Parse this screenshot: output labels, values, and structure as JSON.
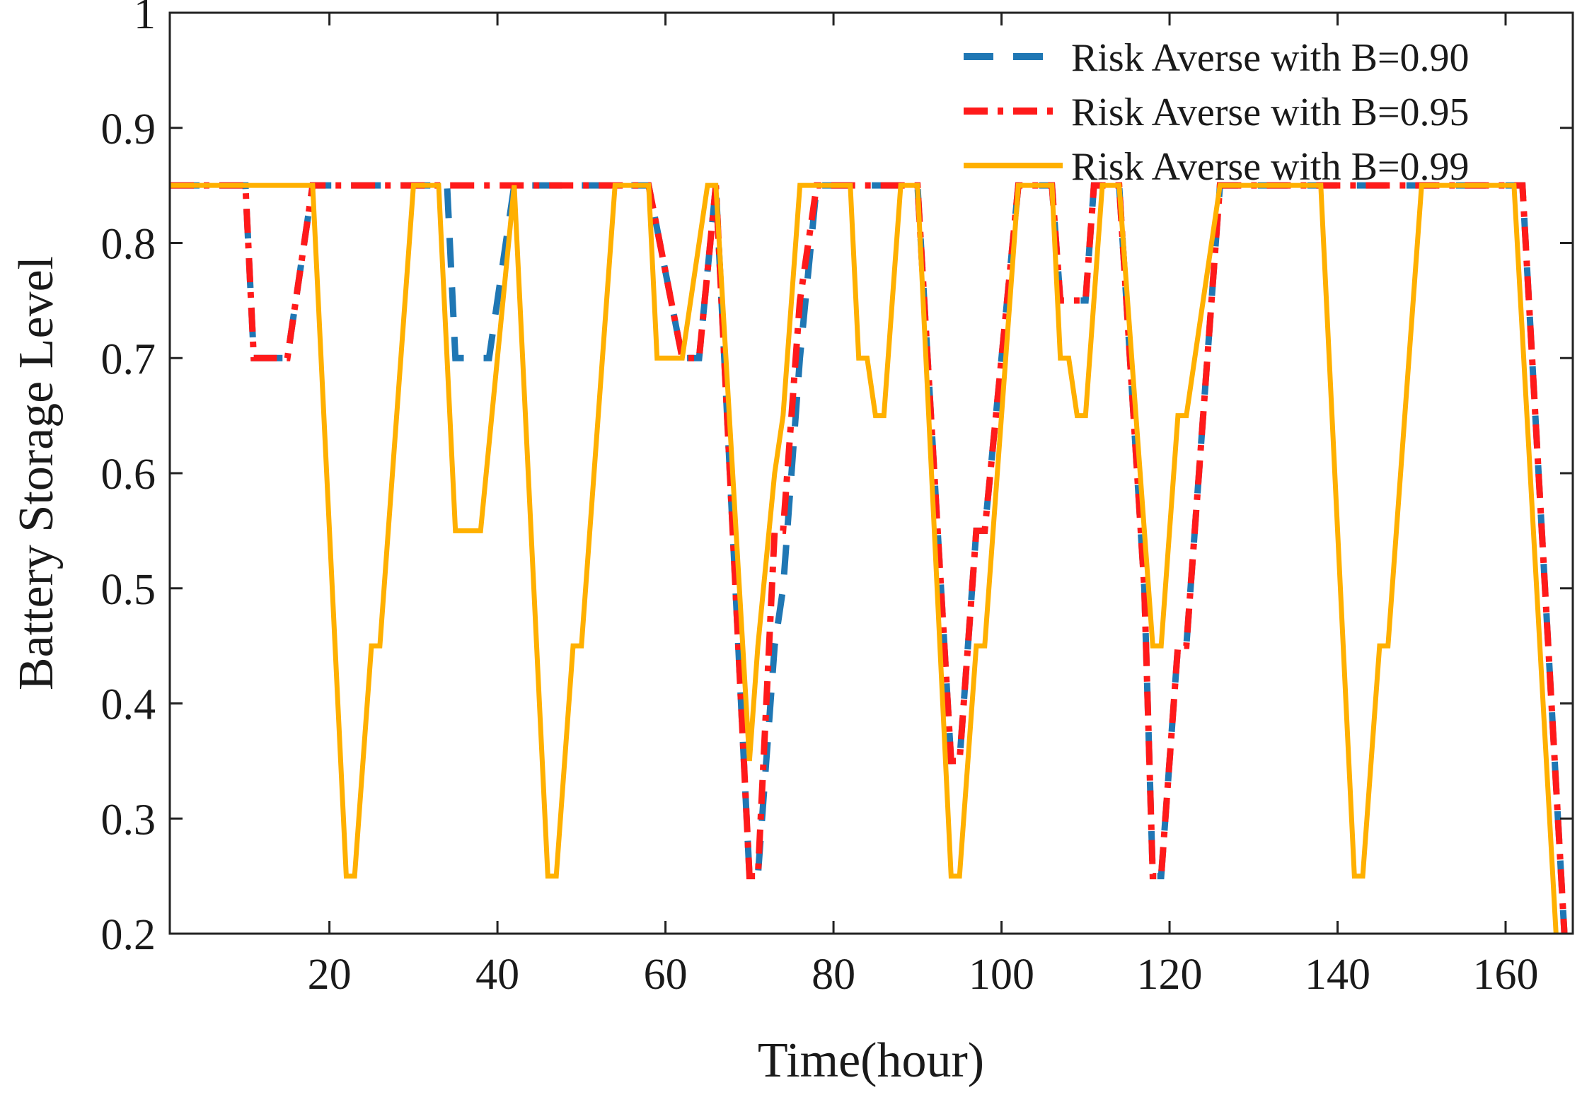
{
  "chart_data": {
    "type": "line",
    "title": "",
    "xlabel": "Time(hour)",
    "ylabel": "Battery Storage Level",
    "xlim": [
      1,
      168
    ],
    "ylim": [
      0.2,
      1.0
    ],
    "xticks": [
      20,
      40,
      60,
      80,
      100,
      120,
      140,
      160
    ],
    "xtick_labels": [
      "20",
      "40",
      "60",
      "80",
      "100",
      "120",
      "140",
      "160"
    ],
    "yticks": [
      0.2,
      0.3,
      0.4,
      0.5,
      0.6,
      0.7,
      0.8,
      0.9,
      1.0
    ],
    "ytick_labels": [
      "0.2",
      "0.3",
      "0.4",
      "0.5",
      "0.6",
      "0.7",
      "0.8",
      "0.9",
      "1"
    ],
    "grid": false,
    "legend_position": "top-right",
    "series": [
      {
        "name": "Risk Averse with B=0.90",
        "color": "#1f77b4",
        "dash": "dashed",
        "x": [
          1,
          10,
          11,
          15,
          18,
          33,
          34,
          35,
          36,
          37,
          38,
          39,
          42,
          54,
          58,
          62,
          64,
          66,
          70,
          71,
          73,
          74,
          76,
          78,
          90,
          94,
          95,
          96,
          97,
          98,
          102,
          106,
          107,
          110,
          111,
          113,
          114,
          117,
          118,
          119,
          121,
          122,
          126,
          161,
          162,
          167
        ],
        "y": [
          0.85,
          0.85,
          0.7,
          0.7,
          0.85,
          0.85,
          0.85,
          0.7,
          0.7,
          0.7,
          0.7,
          0.7,
          0.85,
          0.85,
          0.85,
          0.7,
          0.7,
          0.85,
          0.25,
          0.25,
          0.45,
          0.5,
          0.7,
          0.85,
          0.85,
          0.35,
          0.35,
          0.45,
          0.55,
          0.55,
          0.85,
          0.85,
          0.75,
          0.75,
          0.85,
          0.85,
          0.85,
          0.5,
          0.25,
          0.25,
          0.45,
          0.45,
          0.85,
          0.85,
          0.85,
          0.2
        ]
      },
      {
        "name": "Risk Averse with B=0.95",
        "color": "#ff1a1a",
        "dash": "dashdot",
        "x": [
          1,
          10,
          11,
          15,
          18,
          33,
          42,
          54,
          58,
          62,
          64,
          66,
          70,
          71,
          72,
          73,
          74,
          76,
          78,
          90,
          94,
          95,
          96,
          97,
          98,
          102,
          106,
          107,
          110,
          111,
          113,
          114,
          117,
          118,
          119,
          121,
          122,
          126,
          161,
          162,
          167
        ],
        "y": [
          0.85,
          0.85,
          0.7,
          0.7,
          0.85,
          0.85,
          0.85,
          0.85,
          0.85,
          0.7,
          0.7,
          0.85,
          0.25,
          0.25,
          0.4,
          0.55,
          0.55,
          0.75,
          0.85,
          0.85,
          0.35,
          0.35,
          0.45,
          0.55,
          0.55,
          0.85,
          0.85,
          0.75,
          0.75,
          0.85,
          0.85,
          0.85,
          0.5,
          0.25,
          0.25,
          0.45,
          0.45,
          0.85,
          0.85,
          0.85,
          0.2
        ]
      },
      {
        "name": "Risk Averse with B=0.99",
        "color": "#ffb000",
        "dash": "solid",
        "x": [
          1,
          18,
          22,
          23,
          25,
          26,
          30,
          33,
          35,
          38,
          42,
          46,
          47,
          49,
          50,
          54,
          58,
          59,
          62,
          64,
          65,
          66,
          70,
          71,
          73,
          74,
          76,
          82,
          83,
          84,
          85,
          86,
          88,
          90,
          94,
          95,
          97,
          98,
          102,
          106,
          107,
          108,
          109,
          110,
          112,
          114,
          118,
          119,
          121,
          122,
          126,
          138,
          142,
          143,
          145,
          146,
          150,
          161,
          166
        ],
        "y": [
          0.85,
          0.85,
          0.25,
          0.25,
          0.45,
          0.45,
          0.85,
          0.85,
          0.55,
          0.55,
          0.85,
          0.25,
          0.25,
          0.45,
          0.45,
          0.85,
          0.85,
          0.7,
          0.7,
          0.8,
          0.85,
          0.85,
          0.35,
          0.45,
          0.6,
          0.65,
          0.85,
          0.85,
          0.7,
          0.7,
          0.65,
          0.65,
          0.85,
          0.85,
          0.25,
          0.25,
          0.45,
          0.45,
          0.85,
          0.85,
          0.7,
          0.7,
          0.65,
          0.65,
          0.85,
          0.85,
          0.45,
          0.45,
          0.65,
          0.65,
          0.85,
          0.85,
          0.25,
          0.25,
          0.45,
          0.45,
          0.85,
          0.85,
          0.2
        ]
      }
    ]
  }
}
